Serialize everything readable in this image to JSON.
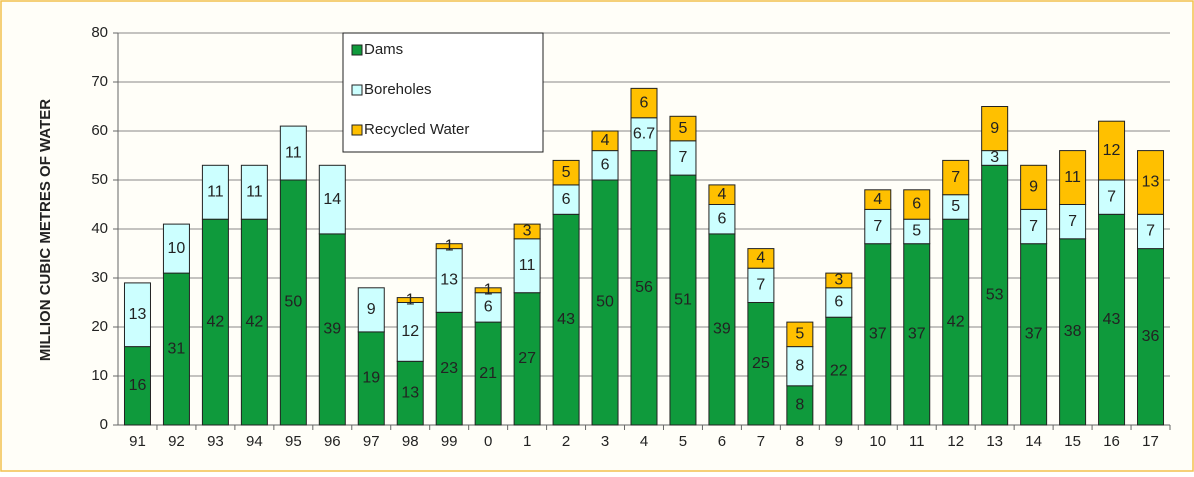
{
  "chart_data": {
    "type": "stacked_bar",
    "ylabel": "MILLION CUBIC METRES OF WATER",
    "categories": [
      "91",
      "92",
      "93",
      "94",
      "95",
      "96",
      "97",
      "98",
      "99",
      "0",
      "1",
      "2",
      "3",
      "4",
      "5",
      "6",
      "7",
      "8",
      "9",
      "10",
      "11",
      "12",
      "13",
      "14",
      "15",
      "16",
      "17"
    ],
    "series": [
      {
        "name": "Dams",
        "color": "#0f9a3c",
        "values": [
          16,
          31,
          42,
          42,
          50,
          39,
          19,
          13,
          23,
          21,
          27,
          43,
          50,
          56,
          51,
          39,
          25,
          8,
          22,
          37,
          37,
          42,
          53,
          37,
          38,
          43,
          36
        ]
      },
      {
        "name": "Boreholes",
        "color": "#ccffff",
        "values": [
          13,
          10,
          11,
          11,
          11,
          14,
          9,
          12,
          13,
          6,
          11,
          6,
          6,
          6.7,
          7,
          6,
          7,
          8,
          6,
          7,
          5,
          5,
          3,
          7,
          7,
          7,
          7
        ]
      },
      {
        "name": "Recycled Water",
        "color": "#ffc000",
        "values": [
          null,
          null,
          null,
          null,
          null,
          null,
          null,
          1,
          1,
          1,
          3,
          5,
          4,
          6,
          5,
          4,
          4,
          5,
          3,
          4,
          6,
          7,
          9,
          9,
          11,
          12,
          13
        ]
      }
    ],
    "ylim": [
      0,
      80
    ],
    "yticks": [
      0,
      10,
      20,
      30,
      40,
      50,
      60,
      70,
      80
    ],
    "grid": true
  }
}
